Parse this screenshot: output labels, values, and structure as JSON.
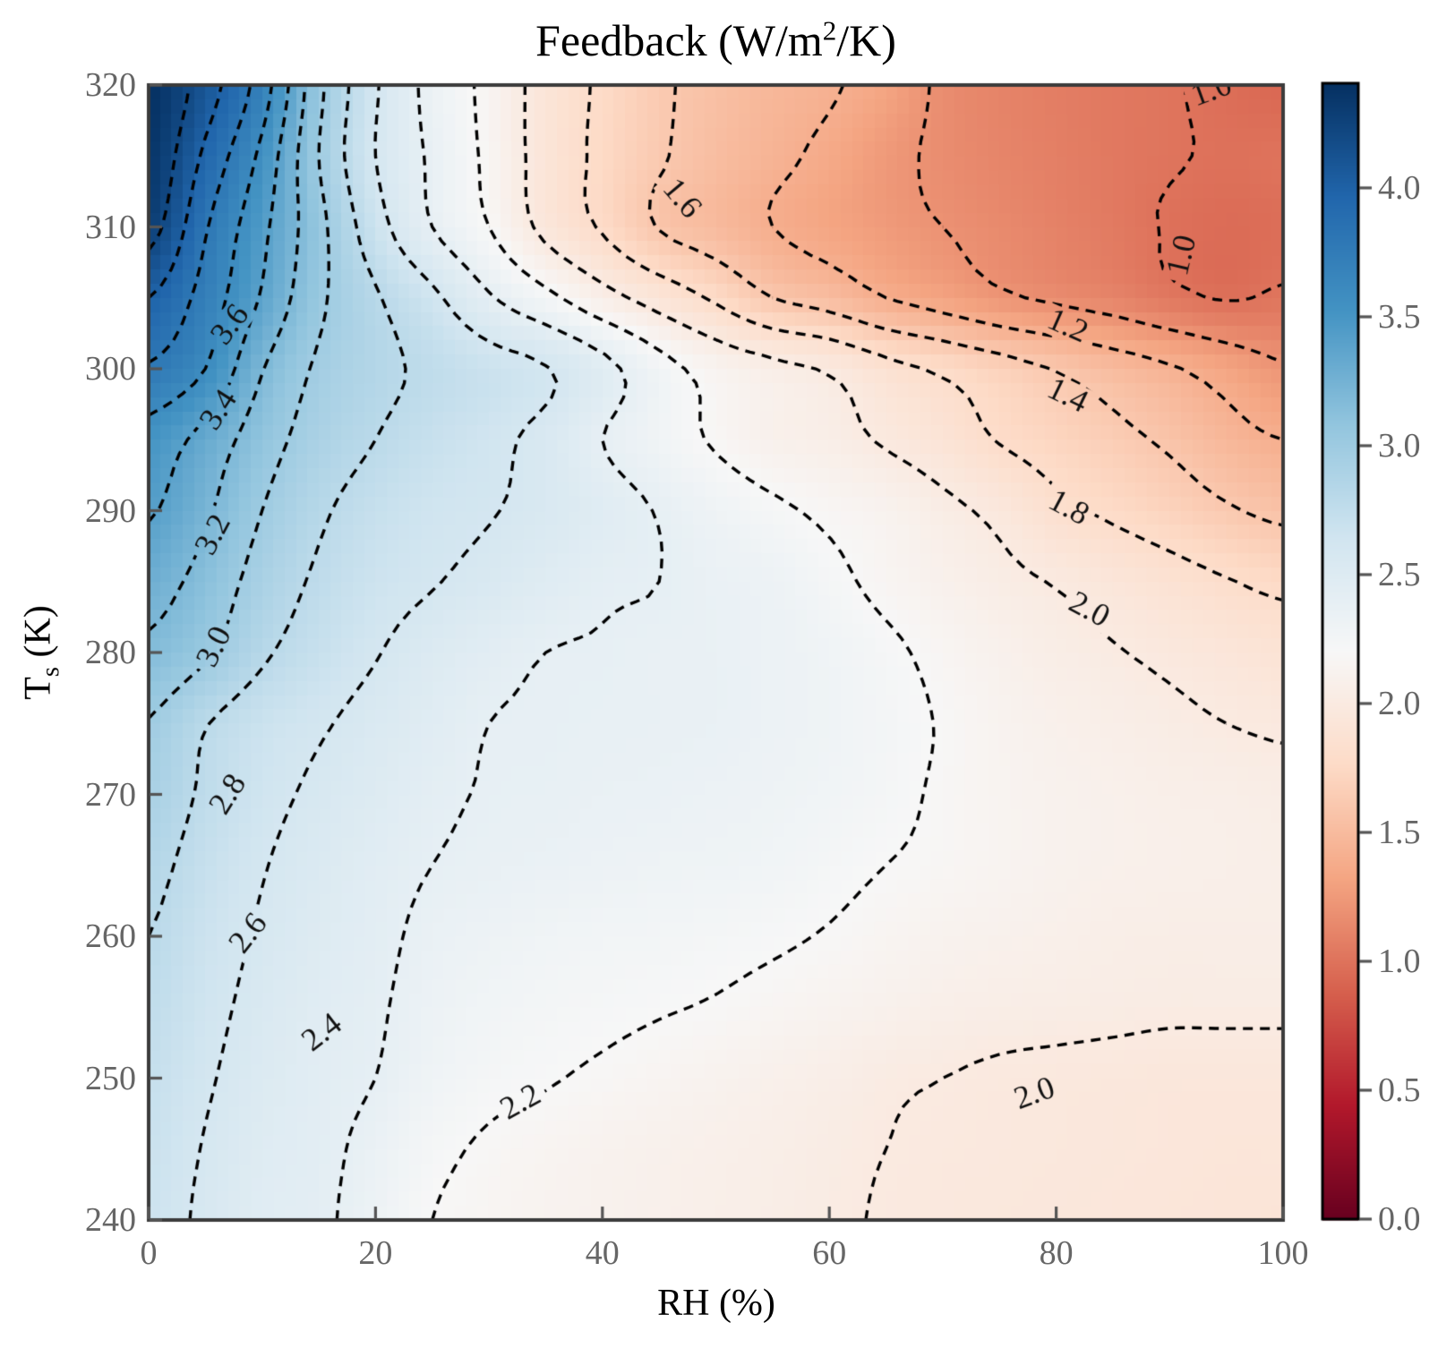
{
  "title": {
    "prefix": "Feedback (W/m",
    "sup": "2",
    "suffix": "/K)"
  },
  "x_axis": {
    "label": "RH (%)",
    "tick_labels": [
      "0",
      "20",
      "40",
      "60",
      "80",
      "100"
    ],
    "tick_values": [
      0,
      20,
      40,
      60,
      80,
      100
    ],
    "range": [
      0,
      100
    ]
  },
  "y_axis": {
    "label_prefix": "T",
    "label_sub": "s",
    "label_suffix": " (K)",
    "tick_labels": [
      "240",
      "250",
      "260",
      "270",
      "280",
      "290",
      "300",
      "310",
      "320"
    ],
    "tick_values": [
      240,
      250,
      260,
      270,
      280,
      290,
      300,
      310,
      320
    ],
    "range": [
      240,
      320
    ]
  },
  "colorbar": {
    "tick_labels": [
      "0.0",
      "0.5",
      "1.0",
      "1.5",
      "2.0",
      "2.5",
      "3.0",
      "3.5",
      "4.0"
    ],
    "tick_values": [
      0,
      0.5,
      1,
      1.5,
      2,
      2.5,
      3,
      3.5,
      4
    ],
    "vmin": 0,
    "vmax": 4.406,
    "colormap": "RdBu",
    "stops": [
      [
        103,
        0,
        31
      ],
      [
        178,
        24,
        43
      ],
      [
        214,
        96,
        77
      ],
      [
        244,
        165,
        130
      ],
      [
        253,
        219,
        199
      ],
      [
        247,
        247,
        247
      ],
      [
        209,
        229,
        240
      ],
      [
        146,
        197,
        222
      ],
      [
        67,
        147,
        195
      ],
      [
        33,
        102,
        172
      ],
      [
        5,
        48,
        97
      ]
    ]
  },
  "styles": {
    "contour_color": "#000000",
    "spine_color": "#3b3b3b",
    "tick_color": "#555555",
    "tick_label_color": "#666666",
    "label_text_color": "#111111",
    "background": "#ffffff"
  },
  "chart_data": {
    "type": "heatmap",
    "title": "Feedback (W/m2/K)",
    "xlabel": "RH (%)",
    "ylabel": "Ts (K)",
    "x": [
      0,
      5,
      10,
      15,
      20,
      25,
      30,
      35,
      40,
      45,
      50,
      55,
      60,
      65,
      70,
      75,
      80,
      85,
      90,
      95,
      100
    ],
    "y": [
      240,
      245,
      250,
      255,
      260,
      265,
      270,
      275,
      280,
      285,
      290,
      295,
      300,
      305,
      310,
      315,
      320
    ],
    "values": [
      [
        2.67,
        2.57,
        2.47,
        2.43,
        2.32,
        2.2,
        2.16,
        2.13,
        2.11,
        2.09,
        2.07,
        2.05,
        2.02,
        1.99,
        1.97,
        1.96,
        1.95,
        1.94,
        1.93,
        1.92,
        1.91
      ],
      [
        2.69,
        2.59,
        2.49,
        2.44,
        2.35,
        2.24,
        2.18,
        2.15,
        2.12,
        2.1,
        2.08,
        2.06,
        2.03,
        2.0,
        1.98,
        1.97,
        1.96,
        1.95,
        1.94,
        1.93,
        1.93
      ],
      [
        2.72,
        2.62,
        2.52,
        2.45,
        2.4,
        2.3,
        2.24,
        2.21,
        2.18,
        2.15,
        2.12,
        2.09,
        2.06,
        2.02,
        2.0,
        1.98,
        1.97,
        1.96,
        1.95,
        1.95,
        1.95
      ],
      [
        2.76,
        2.65,
        2.55,
        2.47,
        2.42,
        2.33,
        2.28,
        2.25,
        2.23,
        2.21,
        2.19,
        2.16,
        2.13,
        2.1,
        2.07,
        2.05,
        2.04,
        2.03,
        2.02,
        2.02,
        2.02
      ],
      [
        2.8,
        2.68,
        2.58,
        2.5,
        2.44,
        2.36,
        2.32,
        2.29,
        2.27,
        2.26,
        2.24,
        2.22,
        2.19,
        2.15,
        2.12,
        2.1,
        2.08,
        2.06,
        2.05,
        2.05,
        2.05
      ],
      [
        2.85,
        2.72,
        2.61,
        2.53,
        2.46,
        2.4,
        2.37,
        2.35,
        2.33,
        2.31,
        2.3,
        2.28,
        2.24,
        2.2,
        2.17,
        2.14,
        2.11,
        2.09,
        2.08,
        2.07,
        2.06
      ],
      [
        2.92,
        2.77,
        2.65,
        2.57,
        2.5,
        2.43,
        2.39,
        2.38,
        2.36,
        2.35,
        2.33,
        2.31,
        2.28,
        2.24,
        2.18,
        2.14,
        2.11,
        2.09,
        2.07,
        2.06,
        2.04
      ],
      [
        2.99,
        2.81,
        2.69,
        2.62,
        2.54,
        2.47,
        2.4,
        2.39,
        2.38,
        2.37,
        2.36,
        2.33,
        2.3,
        2.25,
        2.19,
        2.13,
        2.09,
        2.06,
        2.03,
        2.0,
        1.98
      ],
      [
        3.16,
        3.03,
        2.83,
        2.71,
        2.61,
        2.52,
        2.45,
        2.4,
        2.39,
        2.37,
        2.36,
        2.33,
        2.29,
        2.23,
        2.16,
        2.1,
        2.05,
        2.01,
        1.97,
        1.93,
        1.89
      ],
      [
        3.28,
        3.13,
        2.92,
        2.77,
        2.67,
        2.61,
        2.55,
        2.48,
        2.42,
        2.4,
        2.35,
        2.32,
        2.24,
        2.16,
        2.1,
        2.04,
        1.99,
        1.93,
        1.87,
        1.81,
        1.76
      ],
      [
        3.42,
        3.23,
        3.0,
        2.83,
        2.72,
        2.65,
        2.61,
        2.55,
        2.47,
        2.39,
        2.3,
        2.23,
        2.17,
        2.12,
        2.04,
        1.96,
        1.84,
        1.77,
        1.7,
        1.62,
        1.56
      ],
      [
        3.52,
        3.33,
        3.09,
        2.91,
        2.8,
        2.71,
        2.64,
        2.55,
        2.4,
        2.29,
        2.18,
        2.1,
        2.06,
        1.98,
        1.9,
        1.79,
        1.72,
        1.65,
        1.57,
        1.47,
        1.4
      ],
      [
        3.78,
        3.6,
        3.21,
        2.97,
        2.85,
        2.76,
        2.68,
        2.61,
        2.46,
        2.27,
        2.13,
        2.05,
        1.98,
        1.86,
        1.77,
        1.68,
        1.59,
        1.5,
        1.42,
        1.32,
        1.22
      ],
      [
        4.0,
        3.72,
        3.38,
        3.04,
        2.82,
        2.64,
        2.42,
        2.25,
        2.07,
        1.92,
        1.77,
        1.6,
        1.52,
        1.4,
        1.32,
        1.23,
        1.17,
        1.12,
        1.04,
        0.99,
        1.02
      ],
      [
        4.28,
        3.82,
        3.45,
        3.06,
        2.68,
        2.4,
        2.2,
        1.95,
        1.78,
        1.59,
        1.5,
        1.4,
        1.33,
        1.26,
        1.2,
        1.15,
        1.1,
        1.05,
        0.99,
        0.96,
        0.97
      ],
      [
        4.36,
        3.96,
        3.55,
        3.0,
        2.6,
        2.37,
        2.16,
        1.92,
        1.76,
        1.62,
        1.52,
        1.44,
        1.36,
        1.25,
        1.17,
        1.12,
        1.08,
        1.04,
        1.01,
        0.99,
        1.0
      ],
      [
        4.4,
        4.1,
        3.7,
        3.05,
        2.62,
        2.34,
        2.15,
        1.92,
        1.77,
        1.63,
        1.54,
        1.47,
        1.42,
        1.32,
        1.17,
        1.11,
        1.07,
        1.04,
        1.01,
        0.97,
        0.93
      ]
    ],
    "contour_levels": [
      1.0,
      1.2,
      1.4,
      1.6,
      1.8,
      2.0,
      2.2,
      2.4,
      2.6,
      2.8,
      3.0,
      3.2,
      3.4,
      3.6,
      3.8,
      4.0,
      4.2
    ],
    "contour_labels": [
      {
        "text": "3.6",
        "x": 7.2,
        "y": 303.1,
        "rot": -53
      },
      {
        "text": "3.4",
        "x": 6.2,
        "y": 297.1,
        "rot": -57
      },
      {
        "text": "3.2",
        "x": 5.7,
        "y": 288.3,
        "rot": -62
      },
      {
        "text": "3.0",
        "x": 5.8,
        "y": 280.4,
        "rot": -64
      },
      {
        "text": "2.8",
        "x": 7.0,
        "y": 270.0,
        "rot": -58
      },
      {
        "text": "2.6",
        "x": 8.8,
        "y": 260.2,
        "rot": -52
      },
      {
        "text": "2.4",
        "x": 15.3,
        "y": 253.2,
        "rot": -38
      },
      {
        "text": "2.2",
        "x": 32.8,
        "y": 248.3,
        "rot": -29
      },
      {
        "text": "2.0",
        "x": 78.1,
        "y": 248.9,
        "rot": -20
      },
      {
        "text": "1.6",
        "x": 47.0,
        "y": 312.0,
        "rot": 50
      },
      {
        "text": "1.8",
        "x": 81.1,
        "y": 290.2,
        "rot": 28
      },
      {
        "text": "2.0",
        "x": 82.9,
        "y": 283.0,
        "rot": 28
      },
      {
        "text": "1.4",
        "x": 81.0,
        "y": 298.1,
        "rot": 26
      },
      {
        "text": "1.2",
        "x": 81.0,
        "y": 303.0,
        "rot": 24
      },
      {
        "text": "1.0",
        "x": 91.1,
        "y": 308.0,
        "rot": -77
      },
      {
        "text": "1.0",
        "x": 93.7,
        "y": 319.6,
        "rot": -20
      }
    ]
  }
}
